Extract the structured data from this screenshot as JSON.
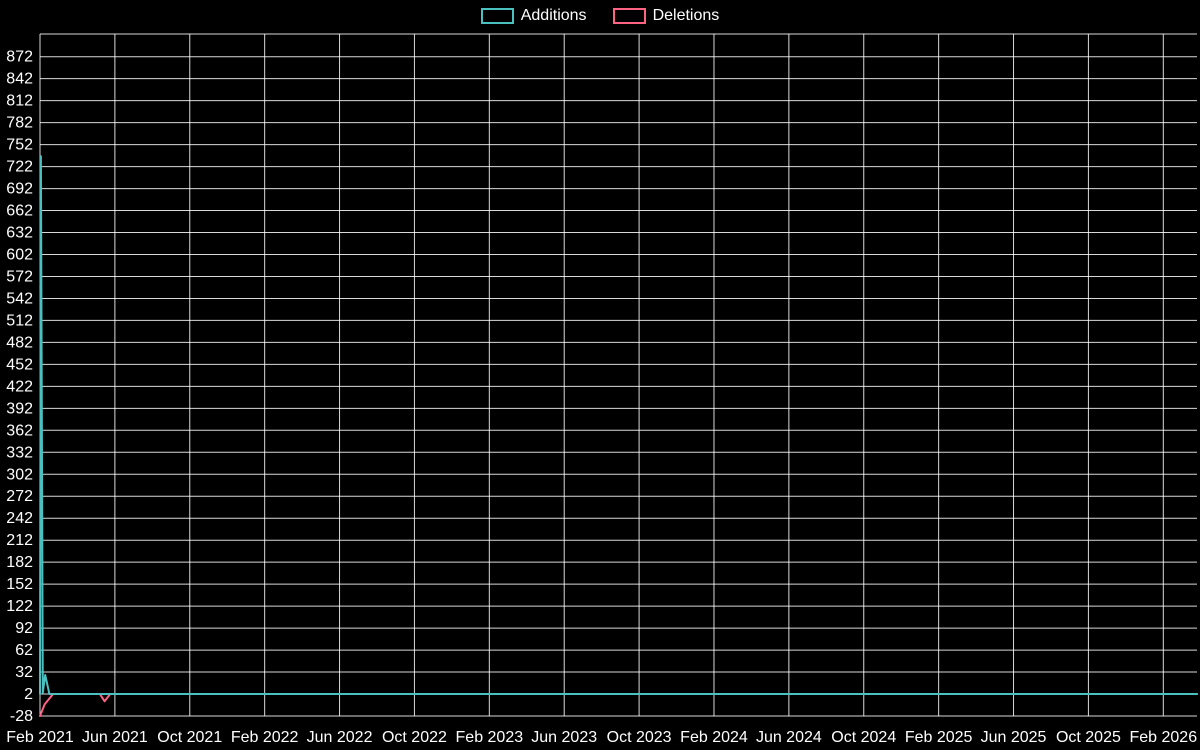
{
  "chart_data": {
    "type": "line",
    "title": "",
    "background": "#000000",
    "text_color": "#ffffff",
    "grid_color": "rgba(255,255,255,0.85)",
    "grid": true,
    "legend_position": "top-center",
    "legend": [
      {
        "label": "Additions",
        "color": "#4bc0c0"
      },
      {
        "label": "Deletions",
        "color": "#ff6384"
      }
    ],
    "x_axis": {
      "unit": "months since Feb 2021",
      "range": [
        0,
        61.8
      ],
      "ticks": [
        0,
        4,
        8,
        12,
        16,
        20,
        24,
        28,
        32,
        36,
        40,
        44,
        48,
        52,
        56,
        60
      ],
      "tick_labels": [
        "Feb 2021",
        "Jun 2021",
        "Oct 2021",
        "Feb 2022",
        "Jun 2022",
        "Oct 2022",
        "Feb 2023",
        "Jun 2023",
        "Oct 2023",
        "Feb 2024",
        "Jun 2024",
        "Oct 2024",
        "Feb 2025",
        "Jun 2025",
        "Oct 2025",
        "Feb 2026"
      ]
    },
    "y_axis": {
      "range": [
        -28,
        903
      ],
      "ticks": [
        -28,
        2,
        32,
        62,
        92,
        122,
        152,
        182,
        212,
        242,
        272,
        302,
        332,
        362,
        392,
        422,
        452,
        482,
        512,
        542,
        572,
        602,
        632,
        662,
        692,
        722,
        752,
        782,
        812,
        842,
        872
      ]
    },
    "baseline_value": 2,
    "series": [
      {
        "name": "Additions",
        "color": "#4bc0c0",
        "line_width": 2,
        "points": [
          [
            0,
            2
          ],
          [
            0.05,
            736
          ],
          [
            0.15,
            4
          ],
          [
            0.28,
            28
          ],
          [
            0.5,
            2
          ],
          [
            3.0,
            2
          ],
          [
            10,
            2
          ],
          [
            20,
            2
          ],
          [
            30,
            2
          ],
          [
            40,
            2
          ],
          [
            50,
            2
          ],
          [
            61.8,
            2
          ]
        ]
      },
      {
        "name": "Deletions",
        "color": "#ff6384",
        "line_width": 2,
        "points": [
          [
            0,
            -28
          ],
          [
            0.25,
            -12
          ],
          [
            0.7,
            2
          ],
          [
            3.2,
            2
          ],
          [
            3.45,
            -8
          ],
          [
            3.75,
            2
          ],
          [
            10,
            2
          ],
          [
            20,
            2
          ],
          [
            30,
            2
          ],
          [
            40,
            2
          ],
          [
            50,
            2
          ],
          [
            61.8,
            2
          ]
        ]
      }
    ]
  }
}
